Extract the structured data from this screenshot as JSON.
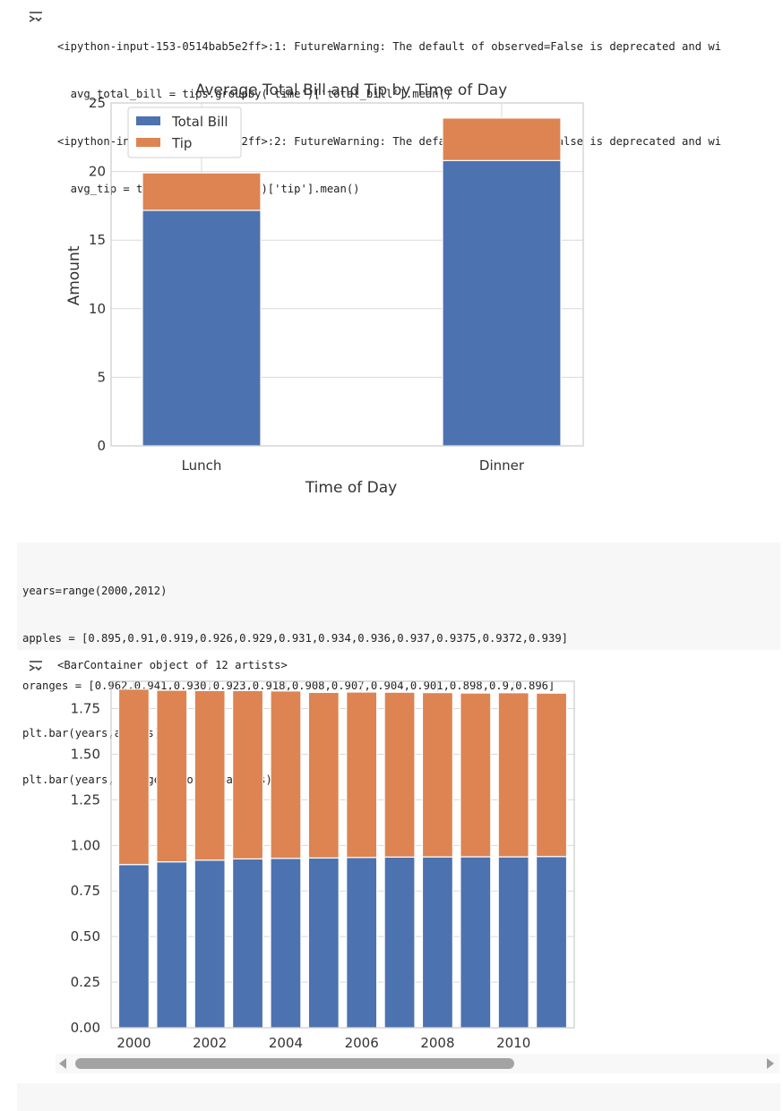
{
  "output1": {
    "icon": "output-expand-icon",
    "warning_lines": [
      "<ipython-input-153-0514bab5e2ff>:1: FutureWarning: The default of observed=False is deprecated and wi",
      "  avg_total_bill = tips.groupby('time')['total_bill'].mean()",
      "<ipython-input-153-0514bab5e2ff>:2: FutureWarning: The default of observed=False is deprecated and wi",
      "  avg_tip = tips.groupby('time')['tip'].mean()"
    ]
  },
  "code_cell": {
    "lines": [
      "years=range(2000,2012)",
      "apples = [0.895,0.91,0.919,0.926,0.929,0.931,0.934,0.936,0.937,0.9375,0.9372,0.939]",
      "oranges = [0.962,0.941,0.930,0.923,0.918,0.908,0.907,0.904,0.901,0.898,0.9,0.896]",
      "plt.bar(years,apples)",
      "plt.bar(years, oranges, bottom=apples)"
    ]
  },
  "output2": {
    "icon": "output-expand-icon",
    "repr": "<BarContainer object of 12 artists>"
  },
  "colors": {
    "blue": "#4c72b0",
    "orange": "#dd8452",
    "grid": "#d9d9d9",
    "frame": "#cccccc"
  },
  "chart_data": [
    {
      "type": "bar",
      "stacked": true,
      "title": "Average Total Bill and Tip by Time of Day",
      "xlabel": "Time of Day",
      "ylabel": "Amount",
      "categories": [
        "Lunch",
        "Dinner"
      ],
      "series": [
        {
          "name": "Total Bill",
          "values": [
            17.17,
            20.8
          ]
        },
        {
          "name": "Tip",
          "values": [
            2.73,
            3.1
          ]
        }
      ],
      "ylim": [
        0,
        25
      ],
      "yticks": [
        "0",
        "5",
        "10",
        "15",
        "20",
        "25"
      ],
      "grid": true,
      "legend": "top-left"
    },
    {
      "type": "bar",
      "stacked": true,
      "title": "",
      "xlabel": "",
      "ylabel": "",
      "x": [
        2000,
        2001,
        2002,
        2003,
        2004,
        2005,
        2006,
        2007,
        2008,
        2009,
        2010,
        2011
      ],
      "series": [
        {
          "values": [
            0.895,
            0.91,
            0.919,
            0.926,
            0.929,
            0.931,
            0.934,
            0.936,
            0.937,
            0.9375,
            0.9372,
            0.939
          ]
        },
        {
          "values": [
            0.962,
            0.941,
            0.93,
            0.923,
            0.918,
            0.908,
            0.907,
            0.904,
            0.901,
            0.898,
            0.9,
            0.896
          ]
        }
      ],
      "ylim": [
        0,
        1.9
      ],
      "yticks": [
        "0.00",
        "0.25",
        "0.50",
        "0.75",
        "1.00",
        "1.25",
        "1.50",
        "1.75"
      ],
      "xticks": [
        "2000",
        "2002",
        "2004",
        "2006",
        "2008",
        "2010"
      ],
      "grid": true
    }
  ]
}
